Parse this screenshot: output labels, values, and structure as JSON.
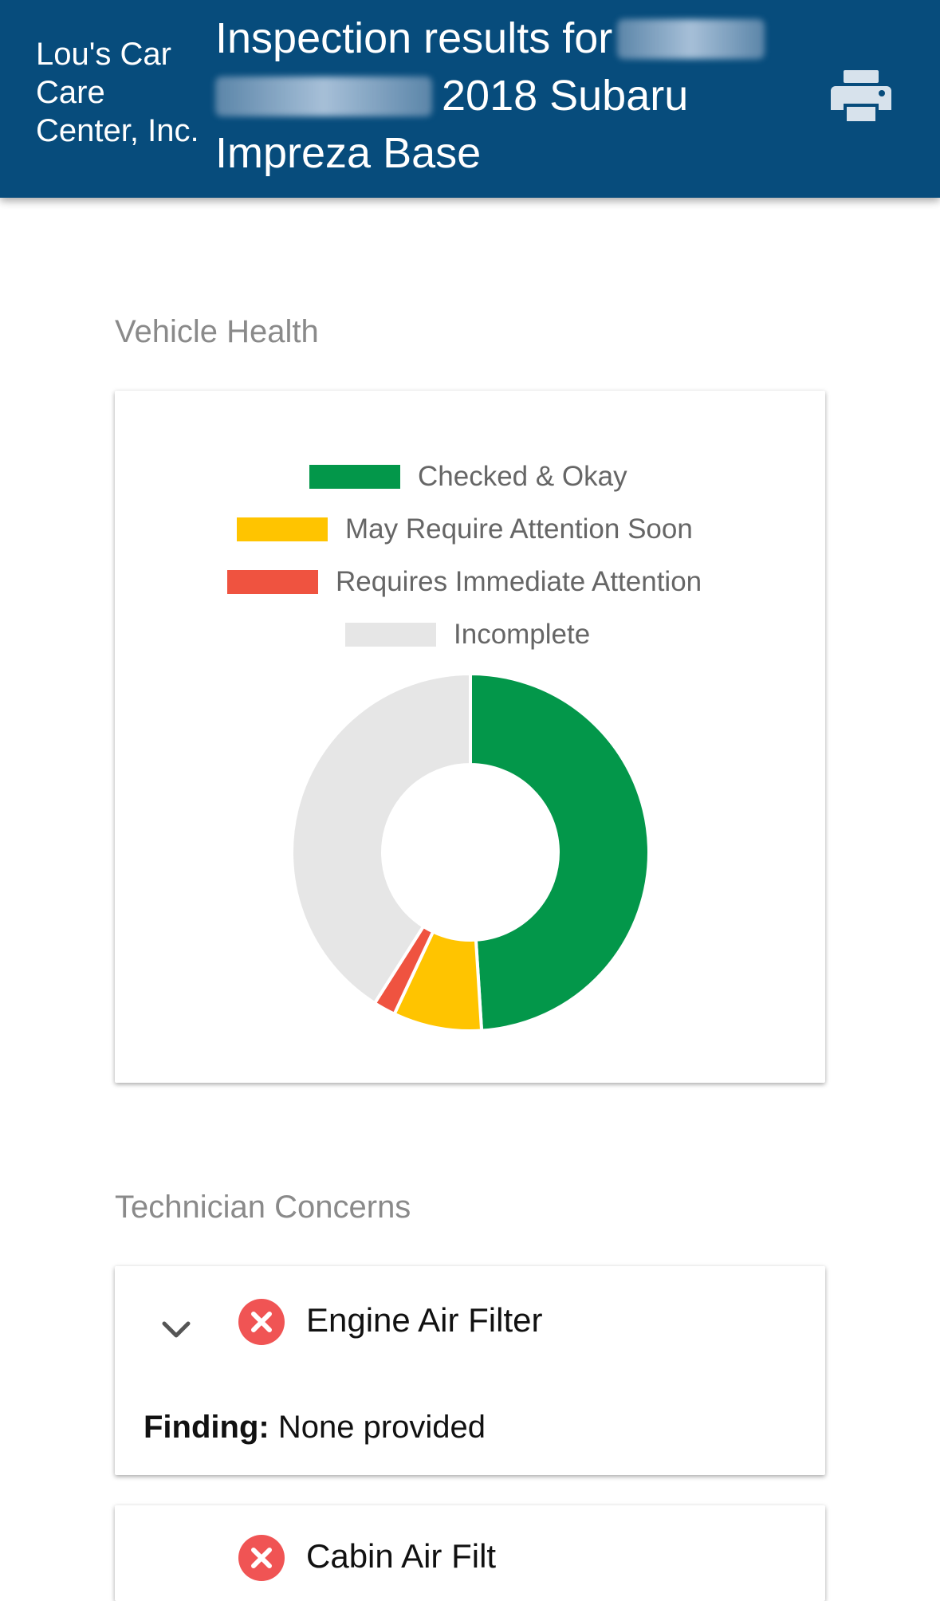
{
  "header": {
    "shop_name": "Lou's Car Care Center, Inc.",
    "title_prefix": "Inspection results for",
    "title_vehicle": "2018 Subaru Impreza Base",
    "print_icon": "printer-icon",
    "background_color": "#074c7c"
  },
  "vehicle_health": {
    "section_title": "Vehicle Health",
    "legend": [
      {
        "label": "Checked & Okay",
        "color": "#03974a"
      },
      {
        "label": "May Require Attention Soon",
        "color": "#ffc400"
      },
      {
        "label": "Requires Immediate Attention",
        "color": "#ef5340"
      },
      {
        "label": "Incomplete",
        "color": "#e6e6e6"
      }
    ]
  },
  "chart_data": {
    "type": "pie",
    "variant": "donut",
    "title": "",
    "series": [
      {
        "name": "Checked & Okay",
        "value": 49,
        "color": "#03974a"
      },
      {
        "name": "May Require Attention Soon",
        "value": 8,
        "color": "#ffc400"
      },
      {
        "name": "Requires Immediate Attention",
        "value": 2,
        "color": "#ef5340"
      },
      {
        "name": "Incomplete",
        "value": 41,
        "color": "#e6e6e6"
      }
    ],
    "legend_position": "top"
  },
  "technician_concerns": {
    "section_title": "Technician Concerns",
    "items": [
      {
        "name": "Engine Air Filter",
        "status_icon": "x-circle-icon",
        "status_color": "#f05454",
        "finding_label": "Finding:",
        "finding_value": "None provided",
        "expand_icon": "chevron-down-icon"
      },
      {
        "name": "Cabin Air Filt",
        "status_icon": "x-circle-icon",
        "status_color": "#f05454"
      }
    ]
  }
}
